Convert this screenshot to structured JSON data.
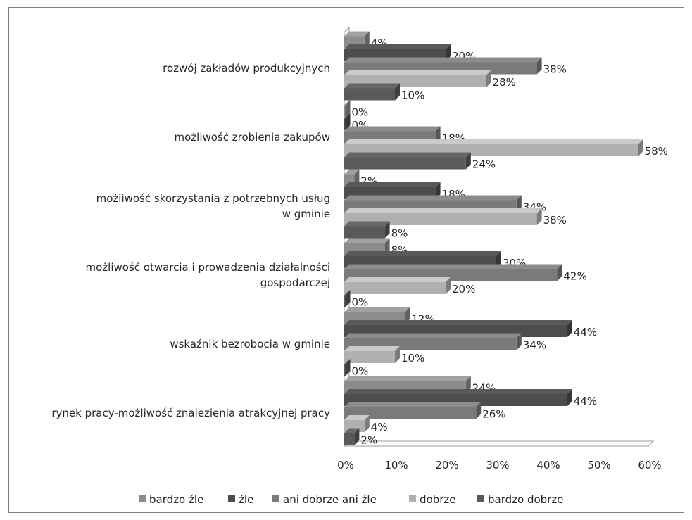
{
  "chart_data": {
    "type": "bar",
    "orientation": "horizontal",
    "categories": [
      "rynek pracy-możliwość znalezienia atrakcyjnej pracy",
      "wskaźnik bezrobocia  w gminie",
      "możliwość otwarcia i prowadzenia działalności gospodarczej",
      "możliwość skorzystania z potrzebnych usług w gminie",
      "możliwość zrobienia zakupów",
      "rozwój zakładów produkcyjnych"
    ],
    "category_lines": [
      [
        "rynek pracy-możliwość znalezienia atrakcyjnej pracy"
      ],
      [
        "wskaźnik bezrobocia  w gminie"
      ],
      [
        "możliwość otwarcia i prowadzenia działalności",
        "gospodarczej"
      ],
      [
        "możliwość skorzystania z potrzebnych usług",
        "w gminie"
      ],
      [
        "możliwość zrobienia zakupów"
      ],
      [
        "rozwój zakładów produkcyjnych"
      ]
    ],
    "series": [
      {
        "name": "bardzo źle",
        "values": [
          24,
          12,
          8,
          2,
          0,
          4
        ],
        "labels": [
          "24%",
          "12%",
          "8%",
          "2%",
          "0%",
          "4%"
        ],
        "color": "#8c8c8c"
      },
      {
        "name": "źle",
        "values": [
          44,
          44,
          30,
          18,
          0,
          20
        ],
        "labels": [
          "44%",
          "44%",
          "30%",
          "18%",
          "0%",
          "20%"
        ],
        "color": "#4d4d4d"
      },
      {
        "name": "ani dobrze ani źle",
        "values": [
          26,
          34,
          42,
          34,
          18,
          38
        ],
        "labels": [
          "26%",
          "34%",
          "42%",
          "34%",
          "18%",
          "38%"
        ],
        "color": "#7a7a7a"
      },
      {
        "name": "dobrze",
        "values": [
          4,
          10,
          20,
          38,
          58,
          28
        ],
        "labels": [
          "4%",
          "10%",
          "20%",
          "38%",
          "58%",
          "28%"
        ],
        "color": "#b0b0b0"
      },
      {
        "name": "bardzo dobrze",
        "values": [
          2,
          0,
          0,
          8,
          24,
          10
        ],
        "labels": [
          "2%",
          "0%",
          "0%",
          "8%",
          "24%",
          "10%"
        ],
        "color": "#5a5a5a"
      }
    ],
    "x_ticks": [
      "0%",
      "10%",
      "20%",
      "30%",
      "40%",
      "50%",
      "60%"
    ],
    "xlim": [
      0,
      60
    ],
    "title": "",
    "xlabel": "",
    "ylabel": "",
    "grid": false,
    "legend": "bottom",
    "style": "3d-bars"
  }
}
